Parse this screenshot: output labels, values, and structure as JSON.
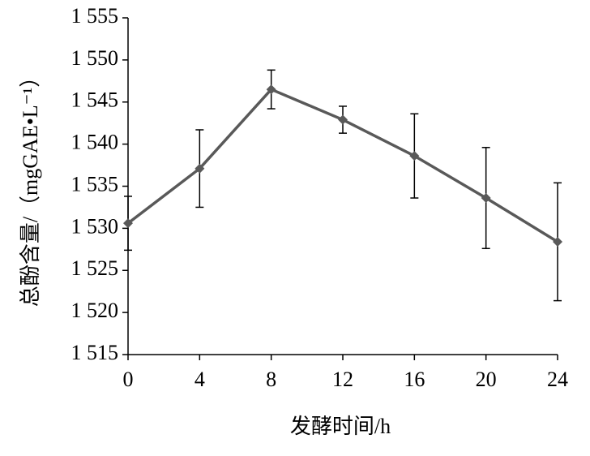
{
  "chart_data": {
    "type": "line",
    "x_label": "发酵时间/h",
    "y_label": "总酚含量/（mgGAE•L⁻¹）",
    "x": [
      0,
      4,
      8,
      12,
      16,
      20,
      24
    ],
    "values": [
      1530.6,
      1537.1,
      1546.5,
      1542.9,
      1538.6,
      1533.6,
      1528.4
    ],
    "errors": [
      3.2,
      4.6,
      2.3,
      1.6,
      5.0,
      6.0,
      7.0
    ],
    "color": "#595959",
    "xlim": [
      0,
      24
    ],
    "xticks": [
      0,
      4,
      8,
      12,
      16,
      20,
      24
    ],
    "ylim": [
      1515,
      1555
    ],
    "yticks": [
      {
        "value": 1515,
        "label": "1 515"
      },
      {
        "value": 1520,
        "label": "1 520"
      },
      {
        "value": 1525,
        "label": "1 525"
      },
      {
        "value": 1530,
        "label": "1 530"
      },
      {
        "value": 1535,
        "label": "1 535"
      },
      {
        "value": 1540,
        "label": "1 540"
      },
      {
        "value": 1545,
        "label": "1 545"
      },
      {
        "value": 1550,
        "label": "1 550"
      },
      {
        "value": 1555,
        "label": "1 555"
      }
    ]
  }
}
